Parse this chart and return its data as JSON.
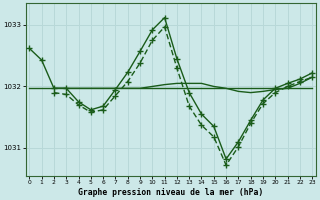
{
  "title": "Graphe pression niveau de la mer (hPa)",
  "background_color": "#cce8e8",
  "grid_color": "#aacccc",
  "line_color": "#1a5c1a",
  "xlim_min": -0.3,
  "xlim_max": 23.3,
  "ylim_min": 1030.55,
  "ylim_max": 1033.35,
  "yticks": [
    1031,
    1032,
    1033
  ],
  "xticks": [
    0,
    1,
    2,
    3,
    4,
    5,
    6,
    7,
    8,
    9,
    10,
    11,
    12,
    13,
    14,
    15,
    16,
    17,
    18,
    19,
    20,
    21,
    22,
    23
  ],
  "lineA_x": [
    0,
    1,
    2,
    3,
    4,
    5,
    6,
    7,
    8,
    9,
    10,
    11,
    12,
    13,
    14,
    15,
    16,
    17,
    18,
    19,
    20,
    21,
    22,
    23
  ],
  "lineA_y": [
    1032.62,
    1032.43,
    1031.97,
    1031.97,
    1031.75,
    1031.62,
    1031.68,
    1031.95,
    1032.23,
    1032.57,
    1032.92,
    1033.12,
    1032.45,
    1031.9,
    1031.55,
    1031.35,
    1030.82,
    1031.1,
    1031.45,
    1031.78,
    1031.97,
    1032.05,
    1032.12,
    1032.22
  ],
  "lineB_x": [
    0,
    1,
    2,
    3,
    4,
    5,
    6,
    7,
    8,
    9,
    10,
    11,
    12,
    13,
    14,
    15,
    16,
    17,
    18,
    19,
    20,
    21,
    22,
    23
  ],
  "lineB_y": [
    1031.97,
    1031.97,
    1031.97,
    1031.97,
    1031.97,
    1031.97,
    1031.97,
    1031.97,
    1031.97,
    1031.97,
    1031.97,
    1031.97,
    1031.97,
    1031.97,
    1031.97,
    1031.97,
    1031.97,
    1031.97,
    1031.97,
    1031.97,
    1031.97,
    1031.97,
    1031.97,
    1031.97
  ],
  "lineC_x": [
    2,
    3,
    4,
    5,
    6,
    7,
    8,
    9,
    10,
    11,
    12,
    13,
    14,
    15,
    16,
    17,
    18,
    19,
    20,
    21,
    22,
    23
  ],
  "lineC_y": [
    1031.97,
    1031.97,
    1031.97,
    1031.97,
    1031.97,
    1031.97,
    1031.97,
    1031.97,
    1032.0,
    1032.03,
    1032.05,
    1032.05,
    1032.05,
    1032.0,
    1031.97,
    1031.92,
    1031.9,
    1031.92,
    1031.95,
    1031.97,
    1032.05,
    1032.15
  ],
  "lineD_x": [
    2,
    3,
    4,
    5,
    6,
    7,
    8,
    9,
    10,
    11,
    12,
    13,
    14,
    15,
    16,
    17,
    18,
    19,
    20,
    21,
    22,
    23
  ],
  "lineD_y": [
    1031.9,
    1031.87,
    1031.7,
    1031.58,
    1031.62,
    1031.85,
    1032.08,
    1032.38,
    1032.75,
    1032.97,
    1032.3,
    1031.68,
    1031.37,
    1031.18,
    1030.72,
    1031.02,
    1031.4,
    1031.72,
    1031.9,
    1032.0,
    1032.08,
    1032.15
  ]
}
